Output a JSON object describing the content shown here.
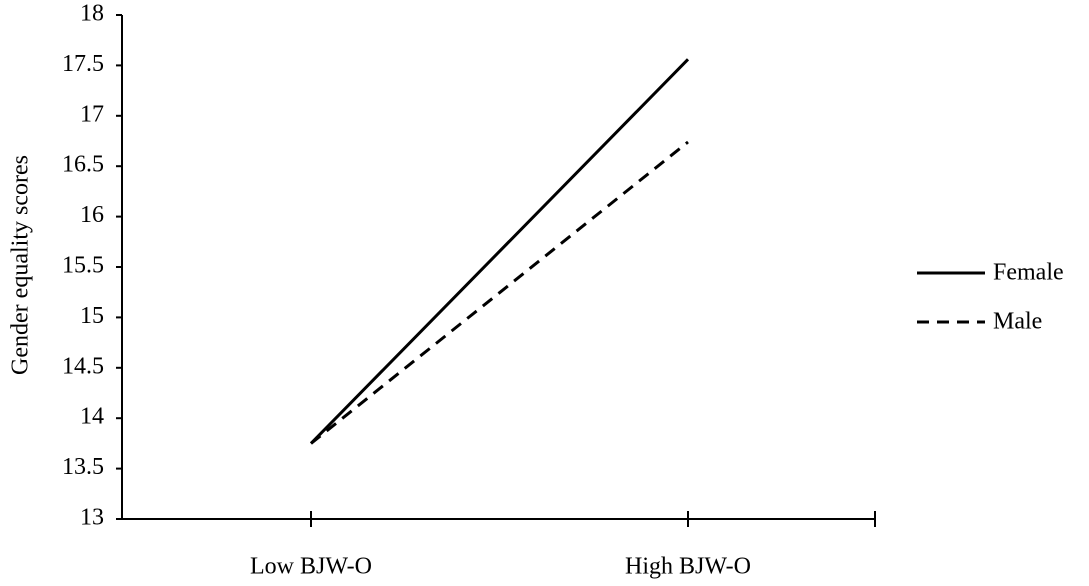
{
  "chart_data": {
    "type": "line",
    "y_label": "Gender equality scores",
    "categories": [
      "Low BJW-O",
      "High BJW-O"
    ],
    "series": [
      {
        "name": "Female",
        "color": "#000000",
        "style": "solid",
        "values": [
          13.75,
          17.56
        ]
      },
      {
        "name": "Male",
        "color": "#000000",
        "style": "dashed",
        "values": [
          13.75,
          16.74
        ]
      }
    ],
    "ylim": [
      13,
      18
    ],
    "yticks": [
      13,
      13.5,
      14,
      14.5,
      15,
      15.5,
      16,
      16.5,
      17,
      17.5,
      18
    ],
    "grid": false,
    "legend": "right"
  }
}
